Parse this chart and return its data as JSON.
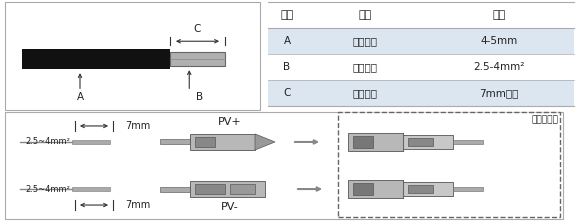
{
  "bg_color": "#ffffff",
  "table_headers": [
    "名称",
    "说明",
    "数值"
  ],
  "table_rows": [
    [
      "A",
      "导线外径",
      "4-5mm"
    ],
    [
      "B",
      "导线内径",
      "2.5-4mm²"
    ],
    [
      "C",
      "剥线长度",
      "7mm左右"
    ]
  ],
  "table_header_bg": "#ffffff",
  "table_row1_bg": "#dce6f1",
  "table_row2_bg": "#ffffff",
  "table_row3_bg": "#dce6f1",
  "cable_black_color": "#111111",
  "cable_gray_color": "#b0b0b0",
  "dim_7mm": "7mm",
  "dim_cross": "2.5~4mm²",
  "label_PVplus": "PV+",
  "label_PVminus": "PV-",
  "label_inverter": "逆变器内部",
  "dashed_box_color": "#666666",
  "text_color": "#333333",
  "arrow_color": "#333333",
  "border_color": "#aaaaaa",
  "sep_line_color": "#aaaaaa"
}
